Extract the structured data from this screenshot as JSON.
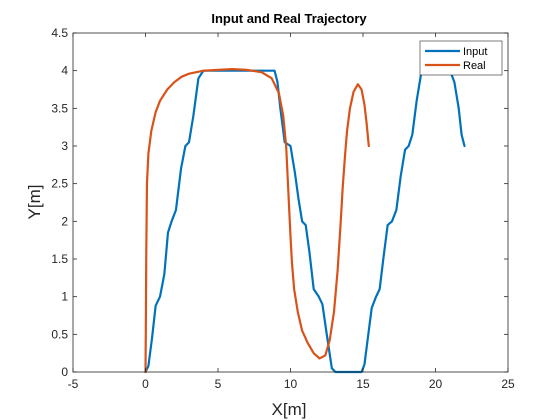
{
  "chart_data": {
    "type": "line",
    "title": "Input and Real Trajectory",
    "xlabel": "X[m]",
    "ylabel": "Y[m]",
    "xlim": [
      -5,
      25
    ],
    "ylim": [
      0,
      4.5
    ],
    "xticks": [
      -5,
      0,
      5,
      10,
      15,
      20,
      25
    ],
    "yticks": [
      0,
      0.5,
      1,
      1.5,
      2,
      2.5,
      3,
      3.5,
      4,
      4.5
    ],
    "xtick_labels": [
      "-5",
      "0",
      "5",
      "10",
      "15",
      "20",
      "25"
    ],
    "ytick_labels": [
      "0",
      "0.5",
      "1",
      "1.5",
      "2",
      "2.5",
      "3",
      "3.5",
      "4",
      "4.5"
    ],
    "grid": false,
    "legend_position": "top-right",
    "series": [
      {
        "name": "Input",
        "color": "#0072BD",
        "x": [
          0,
          0.2,
          0.45,
          0.7,
          1.0,
          1.3,
          1.55,
          1.8,
          2.1,
          2.45,
          2.75,
          3.0,
          3.3,
          3.65,
          4.0,
          4.3,
          5.0,
          6.5,
          8.0,
          8.9,
          9.1,
          9.3,
          9.6,
          10.0,
          10.3,
          10.55,
          10.8,
          11.05,
          11.3,
          11.6,
          11.95,
          12.2,
          12.5,
          12.85,
          13.1,
          13.6,
          14.2,
          14.9,
          15.1,
          15.3,
          15.6,
          15.9,
          16.15,
          16.4,
          16.7,
          17.0,
          17.3,
          17.6,
          17.9,
          18.15,
          18.4,
          18.7,
          19.0,
          19.3,
          19.6,
          20.0,
          20.6,
          21.0,
          21.3,
          21.6,
          21.8,
          22.0
        ],
        "y": [
          0,
          0.08,
          0.45,
          0.88,
          1.0,
          1.3,
          1.85,
          2.0,
          2.15,
          2.7,
          3.0,
          3.05,
          3.4,
          3.9,
          4.0,
          4.0,
          4.0,
          4.0,
          4.0,
          4.0,
          3.85,
          3.5,
          3.05,
          3.0,
          2.65,
          2.3,
          2.0,
          1.95,
          1.6,
          1.1,
          1.0,
          0.9,
          0.5,
          0.05,
          0.0,
          0.0,
          0.0,
          0.0,
          0.1,
          0.4,
          0.85,
          1.0,
          1.1,
          1.5,
          1.95,
          2.0,
          2.15,
          2.6,
          2.95,
          3.0,
          3.15,
          3.6,
          3.95,
          4.0,
          4.0,
          4.0,
          4.0,
          4.0,
          3.85,
          3.5,
          3.15,
          3.0
        ]
      },
      {
        "name": "Real",
        "color": "#D95319",
        "x": [
          0,
          0.02,
          0.05,
          0.1,
          0.2,
          0.4,
          0.7,
          1.0,
          1.5,
          2.0,
          2.5,
          3.0,
          3.5,
          4.0,
          5.0,
          6.0,
          7.0,
          8.0,
          8.7,
          9.2,
          9.5,
          9.7,
          9.8,
          9.9,
          10.0,
          10.1,
          10.25,
          10.5,
          10.8,
          11.2,
          11.6,
          12.0,
          12.4,
          12.7,
          13.0,
          13.25,
          13.45,
          13.6,
          13.75,
          13.9,
          14.1,
          14.35,
          14.65,
          14.9,
          15.1,
          15.25,
          15.4
        ],
        "y": [
          0,
          0.5,
          1.5,
          2.5,
          2.9,
          3.2,
          3.45,
          3.6,
          3.75,
          3.85,
          3.92,
          3.96,
          3.98,
          4.0,
          4.01,
          4.02,
          4.01,
          3.98,
          3.9,
          3.7,
          3.4,
          3.0,
          2.6,
          2.2,
          1.8,
          1.45,
          1.1,
          0.8,
          0.55,
          0.38,
          0.25,
          0.18,
          0.22,
          0.42,
          0.8,
          1.35,
          1.95,
          2.45,
          2.85,
          3.2,
          3.5,
          3.72,
          3.82,
          3.75,
          3.55,
          3.3,
          3.0
        ]
      }
    ]
  }
}
